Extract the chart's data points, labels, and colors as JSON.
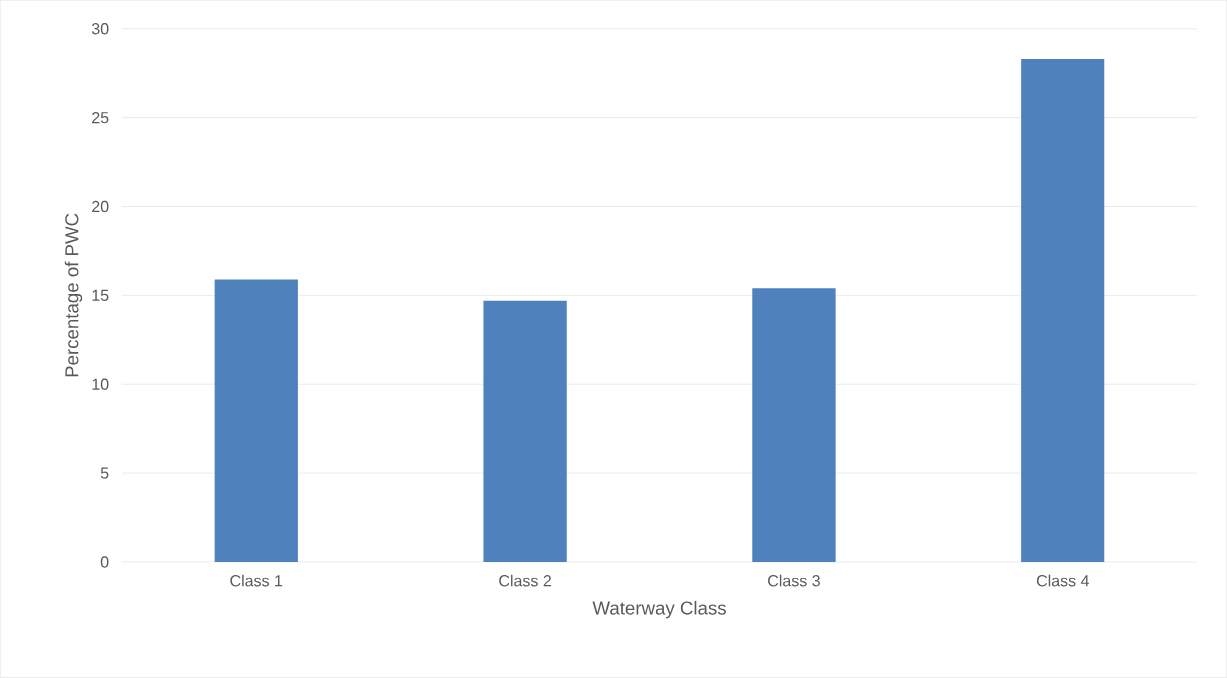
{
  "chart_data": {
    "type": "bar",
    "xlabel": "Waterway Class",
    "ylabel": "Percentage of PWC",
    "categories": [
      "Class 1",
      "Class 2",
      "Class 3",
      "Class 4"
    ],
    "values": [
      15.9,
      14.7,
      15.4,
      28.3
    ],
    "color": "#4f81bd",
    "ylim": [
      0,
      30
    ],
    "yticks": [
      0,
      5,
      10,
      15,
      20,
      25,
      30
    ],
    "grid": "y"
  }
}
